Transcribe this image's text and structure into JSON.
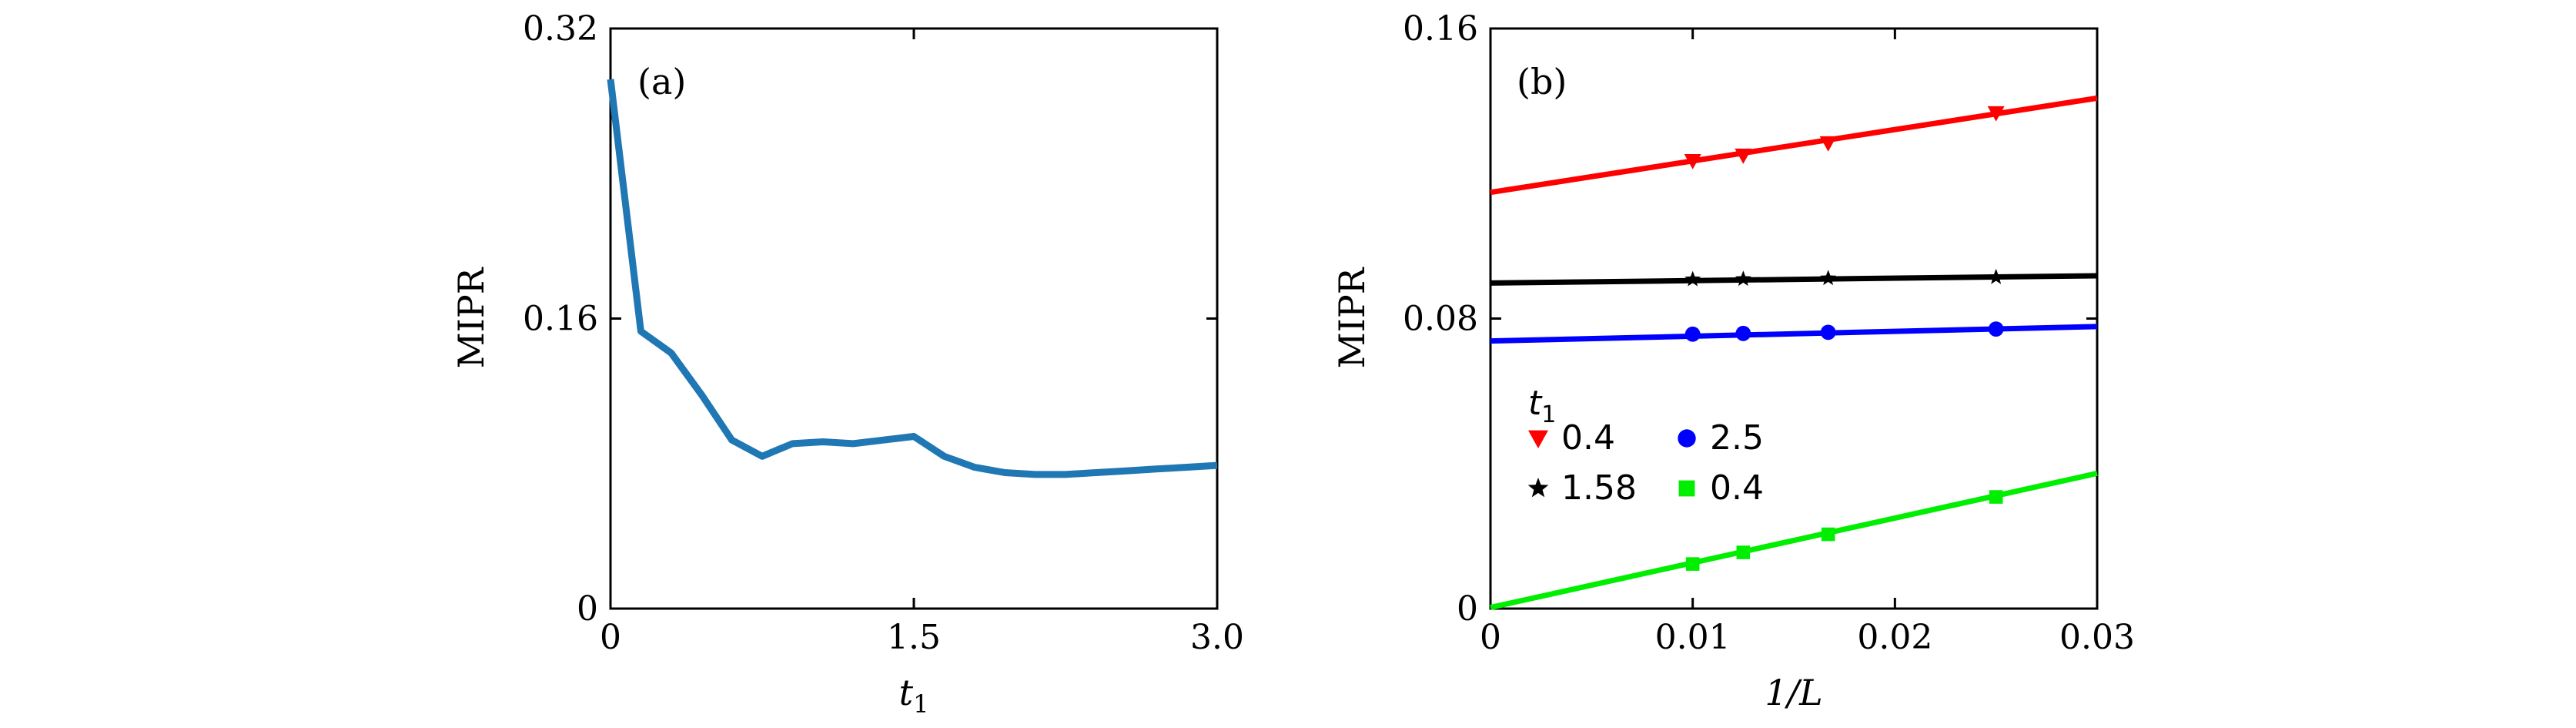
{
  "chart_data": [
    {
      "panel": "(a)",
      "type": "line",
      "title": "",
      "xlabel": "t",
      "xlabel_sub": "1",
      "ylabel": "MIPR",
      "xlim": [
        0,
        3.0
      ],
      "ylim": [
        0,
        0.32
      ],
      "xticks": [
        0,
        1.5,
        3.0
      ],
      "xtick_labels": [
        "0",
        "1.5",
        "3.0"
      ],
      "yticks": [
        0,
        0.16,
        0.32
      ],
      "ytick_labels": [
        "0",
        "0.16",
        "0.32"
      ],
      "grid": false,
      "series": [
        {
          "color": "#1f77b4",
          "x": [
            0.0,
            0.15,
            0.3,
            0.45,
            0.6,
            0.75,
            0.9,
            1.05,
            1.2,
            1.35,
            1.5,
            1.65,
            1.8,
            1.95,
            2.1,
            2.25,
            2.4,
            2.55,
            2.7,
            2.85,
            3.0
          ],
          "y": [
            0.292,
            0.153,
            0.141,
            0.118,
            0.093,
            0.084,
            0.091,
            0.092,
            0.091,
            0.093,
            0.095,
            0.084,
            0.078,
            0.075,
            0.074,
            0.074,
            0.075,
            0.076,
            0.077,
            0.078,
            0.079
          ]
        }
      ]
    },
    {
      "panel": "(b)",
      "type": "scatter",
      "title": "",
      "xlabel": "1/L",
      "ylabel": "MIPR",
      "xlim": [
        0,
        0.03
      ],
      "ylim": [
        0,
        0.16
      ],
      "xticks": [
        0,
        0.01,
        0.02,
        0.03
      ],
      "xtick_labels": [
        "0",
        "0.01",
        "0.02",
        "0.03"
      ],
      "yticks": [
        0,
        0.08,
        0.16
      ],
      "ytick_labels": [
        "0",
        "0.08",
        "0.16"
      ],
      "grid": false,
      "legend": {
        "title": "t",
        "title_sub": "1",
        "position": "lower-left",
        "columns": 2
      },
      "series": [
        {
          "name": "0.4",
          "color": "#ff0000",
          "marker": "triangle-down",
          "points_x": [
            0.01,
            0.0125,
            0.0167,
            0.025
          ],
          "points_y": [
            0.1235,
            0.125,
            0.1284,
            0.1367
          ],
          "fit_x": [
            0,
            0.03
          ],
          "fit_y": [
            0.1148,
            0.1408
          ]
        },
        {
          "name": "1.58",
          "color": "#000000",
          "marker": "star",
          "points_x": [
            0.01,
            0.0125,
            0.0167,
            0.025
          ],
          "points_y": [
            0.0908,
            0.0909,
            0.0911,
            0.0914
          ],
          "fit_x": [
            0,
            0.03
          ],
          "fit_y": [
            0.0898,
            0.0918
          ]
        },
        {
          "name": "2.5",
          "color": "#0000ff",
          "marker": "circle",
          "points_x": [
            0.01,
            0.0125,
            0.0167,
            0.025
          ],
          "points_y": [
            0.0757,
            0.0759,
            0.0762,
            0.0771
          ],
          "fit_x": [
            0,
            0.03
          ],
          "fit_y": [
            0.0738,
            0.0778
          ]
        },
        {
          "name": "0.4",
          "color": "#00ee00",
          "marker": "square",
          "points_x": [
            0.01,
            0.0125,
            0.0167,
            0.025
          ],
          "points_y": [
            0.0123,
            0.0155,
            0.0205,
            0.0308
          ],
          "fit_x": [
            0,
            0.03
          ],
          "fit_y": [
            0.0003,
            0.0373
          ]
        }
      ]
    }
  ]
}
